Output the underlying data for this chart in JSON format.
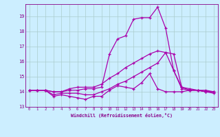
{
  "background_color": "#cceeff",
  "line_color": "#aa00aa",
  "grid_color": "#aacccc",
  "xlabel": "Windchill (Refroidissement éolien,°C)",
  "xlabel_color": "#880088",
  "tick_color": "#880088",
  "xlim": [
    -0.5,
    23.5
  ],
  "ylim": [
    13.0,
    19.8
  ],
  "yticks": [
    13,
    14,
    15,
    16,
    17,
    18,
    19
  ],
  "xticks": [
    0,
    1,
    2,
    3,
    4,
    5,
    6,
    7,
    8,
    9,
    10,
    11,
    12,
    13,
    14,
    15,
    16,
    17,
    18,
    19,
    20,
    21,
    22,
    23
  ],
  "series": [
    [
      14.1,
      14.1,
      14.1,
      13.7,
      13.8,
      13.7,
      13.6,
      13.5,
      13.7,
      13.7,
      14.1,
      14.4,
      14.3,
      14.2,
      14.6,
      15.2,
      14.2,
      14.0,
      14.0,
      14.0,
      14.1,
      14.1,
      14.1,
      14.0
    ],
    [
      14.1,
      14.1,
      14.1,
      13.8,
      13.9,
      13.9,
      13.9,
      13.8,
      13.8,
      14.0,
      14.2,
      14.5,
      14.7,
      15.0,
      15.3,
      15.6,
      15.9,
      16.6,
      15.4,
      14.2,
      14.1,
      14.1,
      14.0,
      14.0
    ],
    [
      14.1,
      14.1,
      14.1,
      14.0,
      14.0,
      14.2,
      14.3,
      14.3,
      14.3,
      14.5,
      14.9,
      15.2,
      15.6,
      15.9,
      16.2,
      16.5,
      16.7,
      16.6,
      16.5,
      14.3,
      14.1,
      14.1,
      14.0,
      14.0
    ],
    [
      14.1,
      14.1,
      14.1,
      14.0,
      14.0,
      14.1,
      14.1,
      14.2,
      14.2,
      14.3,
      16.5,
      17.5,
      17.7,
      18.8,
      18.9,
      18.9,
      19.6,
      18.2,
      15.4,
      14.3,
      14.2,
      14.1,
      14.0,
      13.9
    ]
  ]
}
